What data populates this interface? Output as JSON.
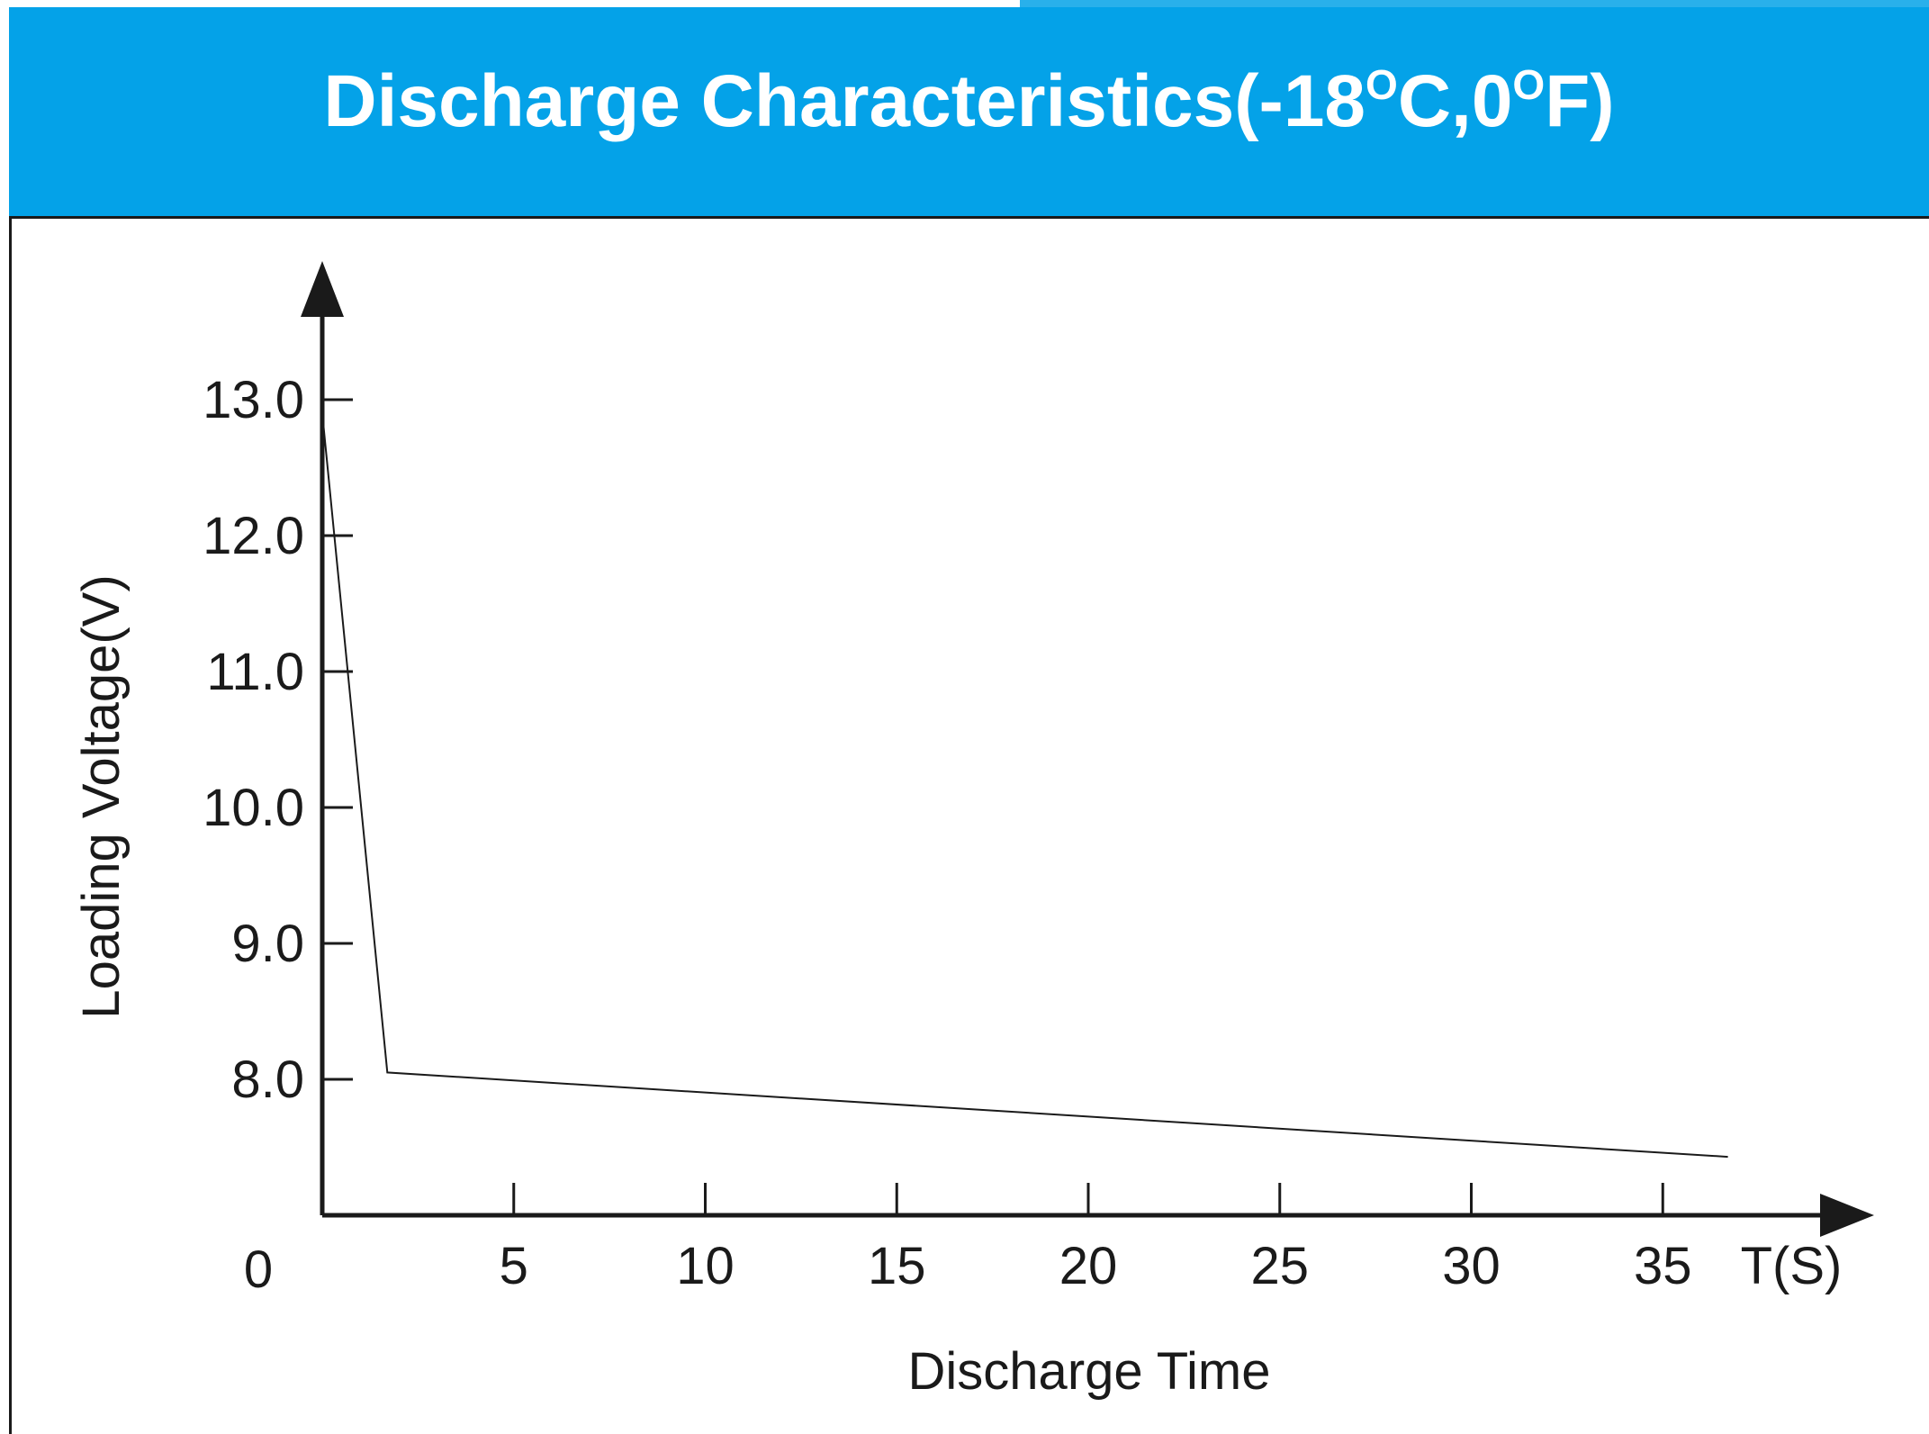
{
  "header": {
    "title_prefix": "Discharge Characteristics(-18",
    "degree_symbol_1": "O",
    "title_mid": "C,0",
    "degree_symbol_2": "O",
    "title_suffix": "F)"
  },
  "colors": {
    "header_background": "#04a2e8",
    "header_text": "#ffffff",
    "axis": "#1a1a1a",
    "line": "#1a1a1a"
  },
  "chart_data": {
    "type": "line",
    "title": "Discharge Characteristics(-18°C,0°F)",
    "xlabel": "Discharge Time",
    "ylabel": "Loading Voltage(V)",
    "x_unit_label": "T(S)",
    "origin_label": "0",
    "xlim": [
      0,
      40
    ],
    "ylim": [
      7.0,
      14.0
    ],
    "x_ticks": [
      5,
      10,
      15,
      20,
      25,
      30,
      35
    ],
    "x_tick_labels": [
      "5",
      "10",
      "15",
      "20",
      "25",
      "30",
      "35"
    ],
    "y_ticks": [
      8.0,
      9.0,
      10.0,
      11.0,
      12.0,
      13.0
    ],
    "y_tick_labels": [
      "8.0",
      "9.0",
      "10.0",
      "11.0",
      "12.0",
      "13.0"
    ],
    "grid": false,
    "legend": "none",
    "series": [
      {
        "x": [
          0,
          1.7,
          36.7
        ],
        "y": [
          12.9,
          8.05,
          7.43
        ]
      }
    ]
  }
}
